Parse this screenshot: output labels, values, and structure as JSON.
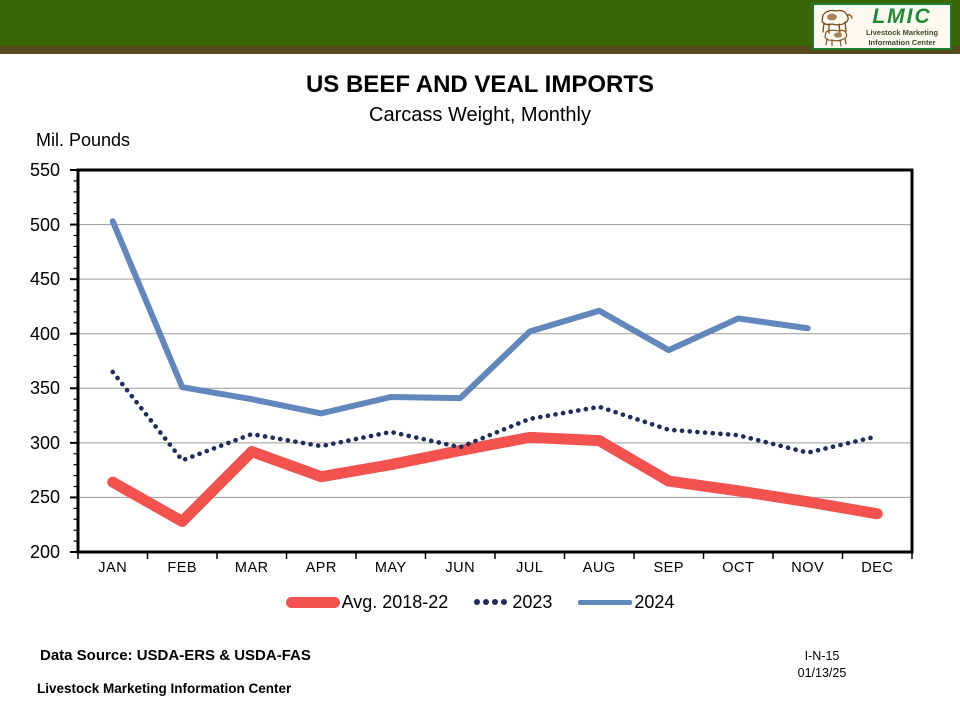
{
  "banner": {
    "logo": {
      "acronym": "LMIC",
      "name_line1": "Livestock Marketing",
      "name_line2": "Information Center"
    }
  },
  "header": {
    "title": "US BEEF AND VEAL IMPORTS",
    "subtitle": "Carcass Weight, Monthly"
  },
  "chart_data": {
    "type": "line",
    "title": "US BEEF AND VEAL IMPORTS",
    "subtitle": "Carcass Weight, Monthly",
    "ylabel": "Mil. Pounds",
    "xlabel": "",
    "categories": [
      "JAN",
      "FEB",
      "MAR",
      "APR",
      "MAY",
      "JUN",
      "JUL",
      "AUG",
      "SEP",
      "OCT",
      "NOV",
      "DEC"
    ],
    "ylim": [
      200,
      550
    ],
    "ytick_step": 50,
    "ytick_labels": [
      "550",
      "500",
      "450",
      "400",
      "350",
      "300",
      "250",
      "200"
    ],
    "minor_tick_step": 10,
    "grid": "horizontal",
    "legend_position": "bottom",
    "series": [
      {
        "name": "Avg. 2018-22",
        "style": "thick-solid",
        "color": "#f4524f",
        "values": [
          264,
          228,
          292,
          269,
          280,
          293,
          305,
          302,
          265,
          256,
          246,
          235
        ]
      },
      {
        "name": "2023",
        "style": "dotted",
        "color": "#1f2c5c",
        "values": [
          365,
          284,
          308,
          297,
          310,
          296,
          322,
          333,
          312,
          307,
          291,
          306
        ]
      },
      {
        "name": "2024",
        "style": "solid",
        "color": "#6187bd",
        "values": [
          503,
          351,
          340,
          327,
          342,
          341,
          402,
          421,
          385,
          414,
          405,
          null
        ]
      }
    ]
  },
  "footer": {
    "data_source": "Data Source:  USDA-ERS & USDA-FAS",
    "org": "Livestock Marketing Information Center",
    "doc_id": "I-N-15",
    "date": "01/13/25"
  },
  "colors": {
    "banner_green": "#3a6606",
    "banner_stripe": "#55491e",
    "logo_green": "#1e8a34",
    "grid_line": "#9c9c9c",
    "axis": "#000000"
  }
}
